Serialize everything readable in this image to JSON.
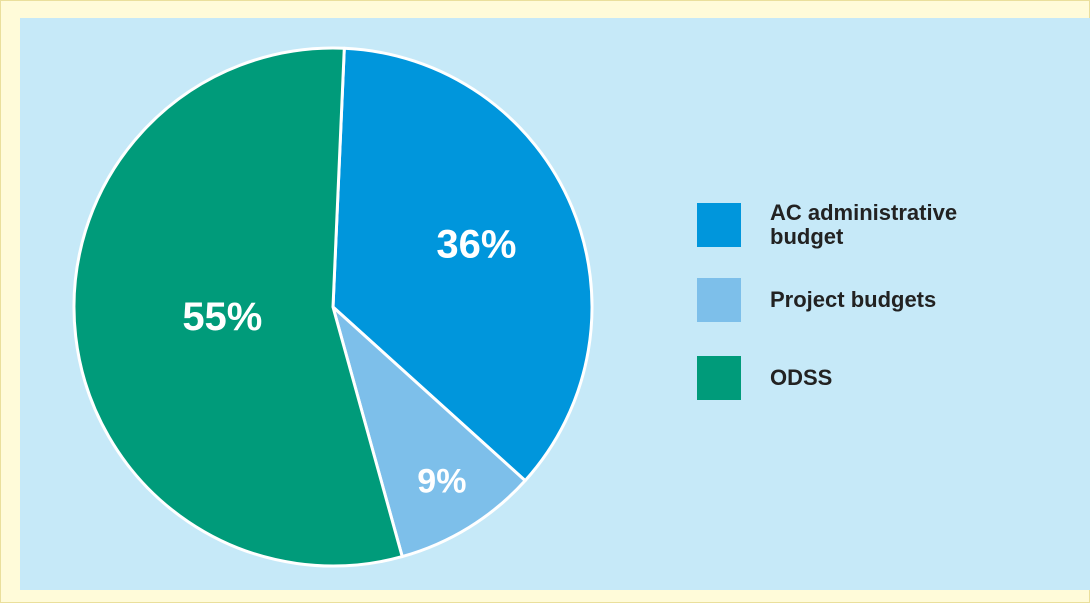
{
  "chart_data": {
    "type": "pie",
    "categories": [
      "AC administrative budget",
      "Project budgets",
      "ODSS"
    ],
    "values": [
      36,
      9,
      55
    ],
    "value_labels": [
      "36%",
      "9%",
      "55%"
    ],
    "colors": [
      "#0096dc",
      "#7dbfea",
      "#009b7a"
    ],
    "legend": "right"
  }
}
